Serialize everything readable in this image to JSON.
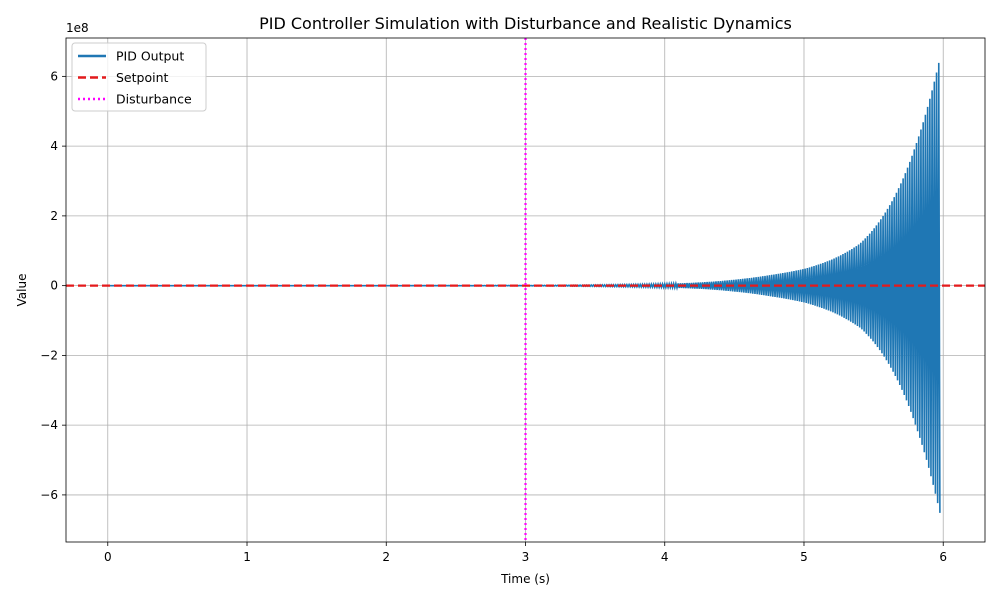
{
  "chart_data": {
    "type": "line",
    "title": "PID Controller Simulation with Disturbance and Realistic Dynamics",
    "xlabel": "Time (s)",
    "ylabel": "Value",
    "y_offset_label": "1e8",
    "y_scale": 100000000,
    "xlim": [
      -0.3,
      6.3
    ],
    "ylim": [
      -7.35,
      7.1
    ],
    "x_ticks": [
      0,
      1,
      2,
      3,
      4,
      5,
      6
    ],
    "x_tick_labels": [
      "0",
      "1",
      "2",
      "3",
      "4",
      "5",
      "6"
    ],
    "y_ticks": [
      -6,
      -4,
      -2,
      0,
      2,
      4,
      6
    ],
    "y_tick_labels": [
      "−6",
      "−4",
      "−2",
      "0",
      "2",
      "4",
      "6"
    ],
    "grid": true,
    "legend_position": "upper-left",
    "series": [
      {
        "name": "PID Output",
        "color": "#1f77b4",
        "style": "solid",
        "description_points": {
          "x": [
            0,
            1,
            2,
            3,
            3.5,
            4,
            4.25,
            4.5,
            4.75,
            5,
            5.2,
            5.4,
            5.6,
            5.8,
            5.9,
            5.98
          ],
          "envelope": [
            0,
            0,
            0,
            0.005,
            0.02,
            0.05,
            0.09,
            0.17,
            0.3,
            0.48,
            0.75,
            1.2,
            2.2,
            4.0,
            5.3,
            6.6
          ]
        }
      },
      {
        "name": "Setpoint",
        "color": "#e41a1c",
        "style": "dashed",
        "y": 0
      },
      {
        "name": "Disturbance",
        "color": "#ff00ff",
        "style": "dotted",
        "x": 3
      }
    ]
  }
}
